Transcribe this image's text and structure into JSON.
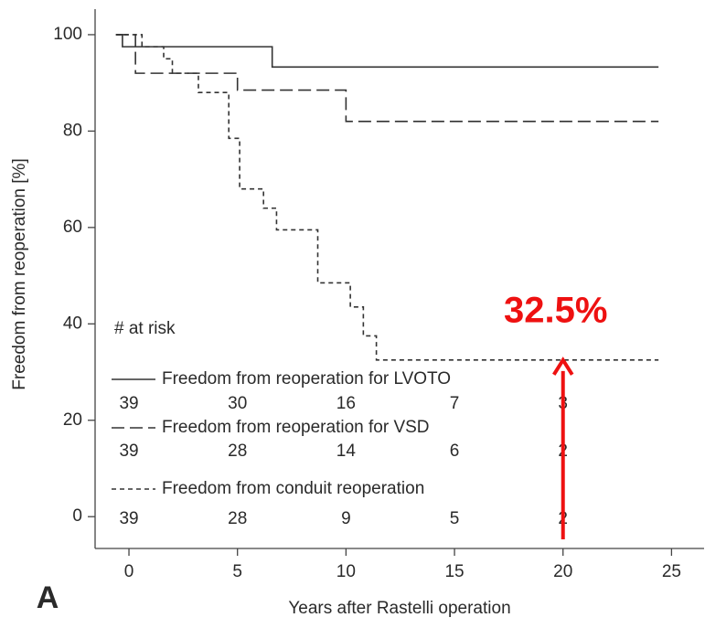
{
  "chart_data": {
    "type": "step",
    "step": "post",
    "panel_label": "A",
    "xlabel": "Years after Rastelli operation",
    "ylabel": "Freedom from reoperation [%]",
    "xlim": [
      -1.56,
      26.5
    ],
    "ylim": [
      -6.6,
      105.3
    ],
    "xticks": [
      0,
      5,
      10,
      15,
      20,
      25
    ],
    "yticks": [
      0,
      20,
      40,
      60,
      80,
      100
    ],
    "at_risk_title": "# at risk",
    "series": [
      {
        "name": "Freedom from reoperation for LVOTO",
        "color": "#333333",
        "dash": "solid",
        "x": [
          -0.6,
          -0.3,
          6.6,
          24.4
        ],
        "values": [
          100,
          97.5,
          93.3,
          93.3
        ],
        "at_risk": [
          39,
          30,
          16,
          7,
          3
        ]
      },
      {
        "name": "Freedom from reoperation for VSD",
        "color": "#333333",
        "dash": "long",
        "x": [
          -0.6,
          0.3,
          5.0,
          10.0,
          24.4
        ],
        "values": [
          100,
          92,
          88.5,
          82,
          82
        ],
        "at_risk": [
          39,
          28,
          14,
          6,
          2
        ]
      },
      {
        "name": "Freedom from conduit reoperation",
        "color": "#333333",
        "dash": "short",
        "x": [
          -0.6,
          0.6,
          1.6,
          2.0,
          3.2,
          4.6,
          5.1,
          6.2,
          6.8,
          8.7,
          10.2,
          10.8,
          11.4,
          24.4
        ],
        "values": [
          100,
          97.5,
          95,
          92,
          88,
          78.5,
          68,
          64,
          59.5,
          48.5,
          43.5,
          37.5,
          32.5,
          32.5
        ],
        "at_risk": [
          39,
          28,
          9,
          5,
          2
        ]
      }
    ],
    "annotations": [
      {
        "text": "32.5%",
        "x": 20,
        "y": 32.5,
        "color": "#ee1111"
      }
    ]
  }
}
